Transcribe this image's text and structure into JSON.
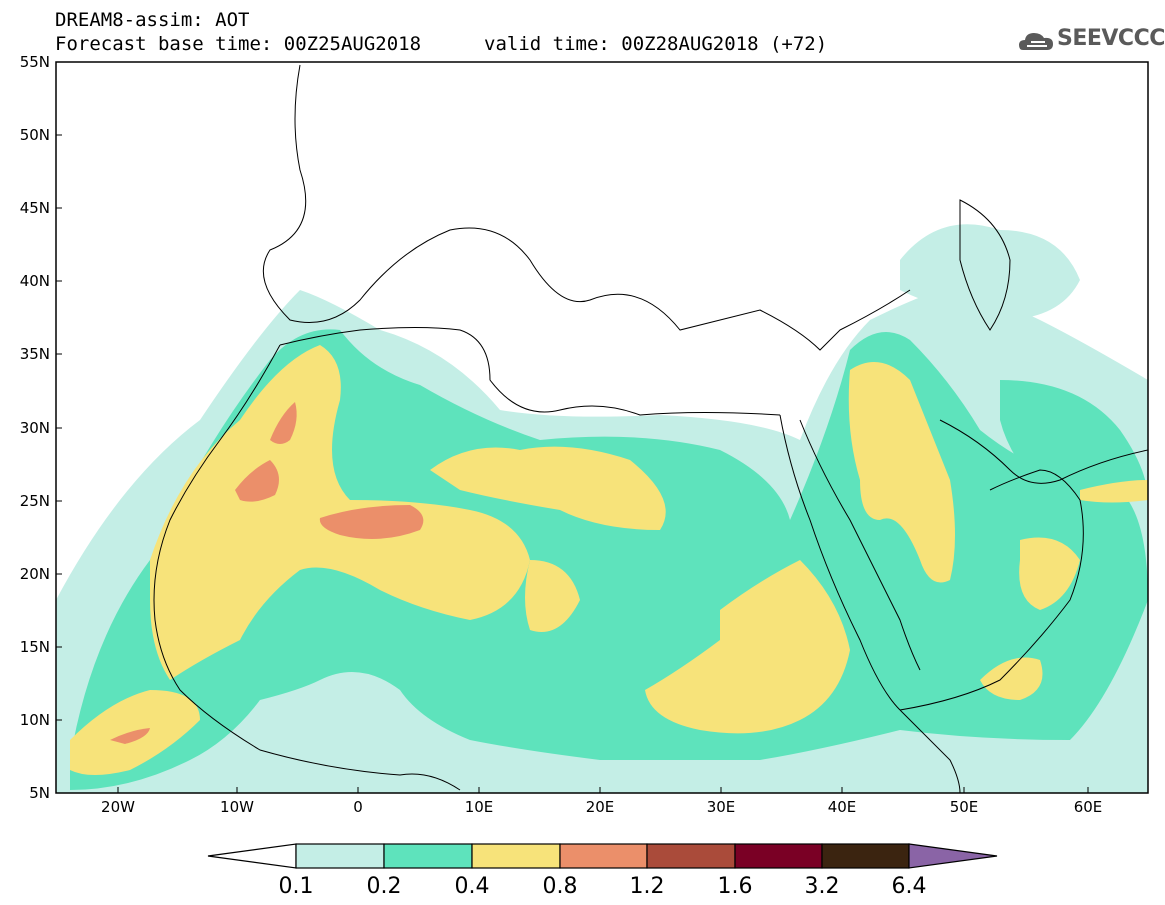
{
  "header": {
    "title_line1": "DREAM8-assim: AOT",
    "title_line2": "Forecast base time: 00Z25AUG2018",
    "valid_time": "valid time: 00Z28AUG2018 (+72)",
    "logo_text": "SEEVCCC"
  },
  "axes": {
    "lat_labels": [
      "55N",
      "50N",
      "45N",
      "40N",
      "35N",
      "30N",
      "25N",
      "20N",
      "15N",
      "10N",
      "5N"
    ],
    "lon_labels": [
      "20W",
      "10W",
      "0",
      "10E",
      "20E",
      "30E",
      "40E",
      "50E",
      "60E"
    ]
  },
  "colorbar": {
    "labels": [
      "0.1",
      "0.2",
      "0.4",
      "0.8",
      "1.2",
      "1.6",
      "3.2",
      "6.4"
    ],
    "colors": [
      "#ffffff",
      "#c4eee6",
      "#5ee3bc",
      "#f7e37a",
      "#eb8f6a",
      "#aa4b3a",
      "#7a0025",
      "#3b2410",
      "#8a64a6"
    ]
  },
  "colors": {
    "aot_01_02": "#c4eee6",
    "aot_02_04": "#5ee3bc",
    "aot_04_08": "#f7e37a",
    "aot_08_12": "#eb8f6a"
  }
}
